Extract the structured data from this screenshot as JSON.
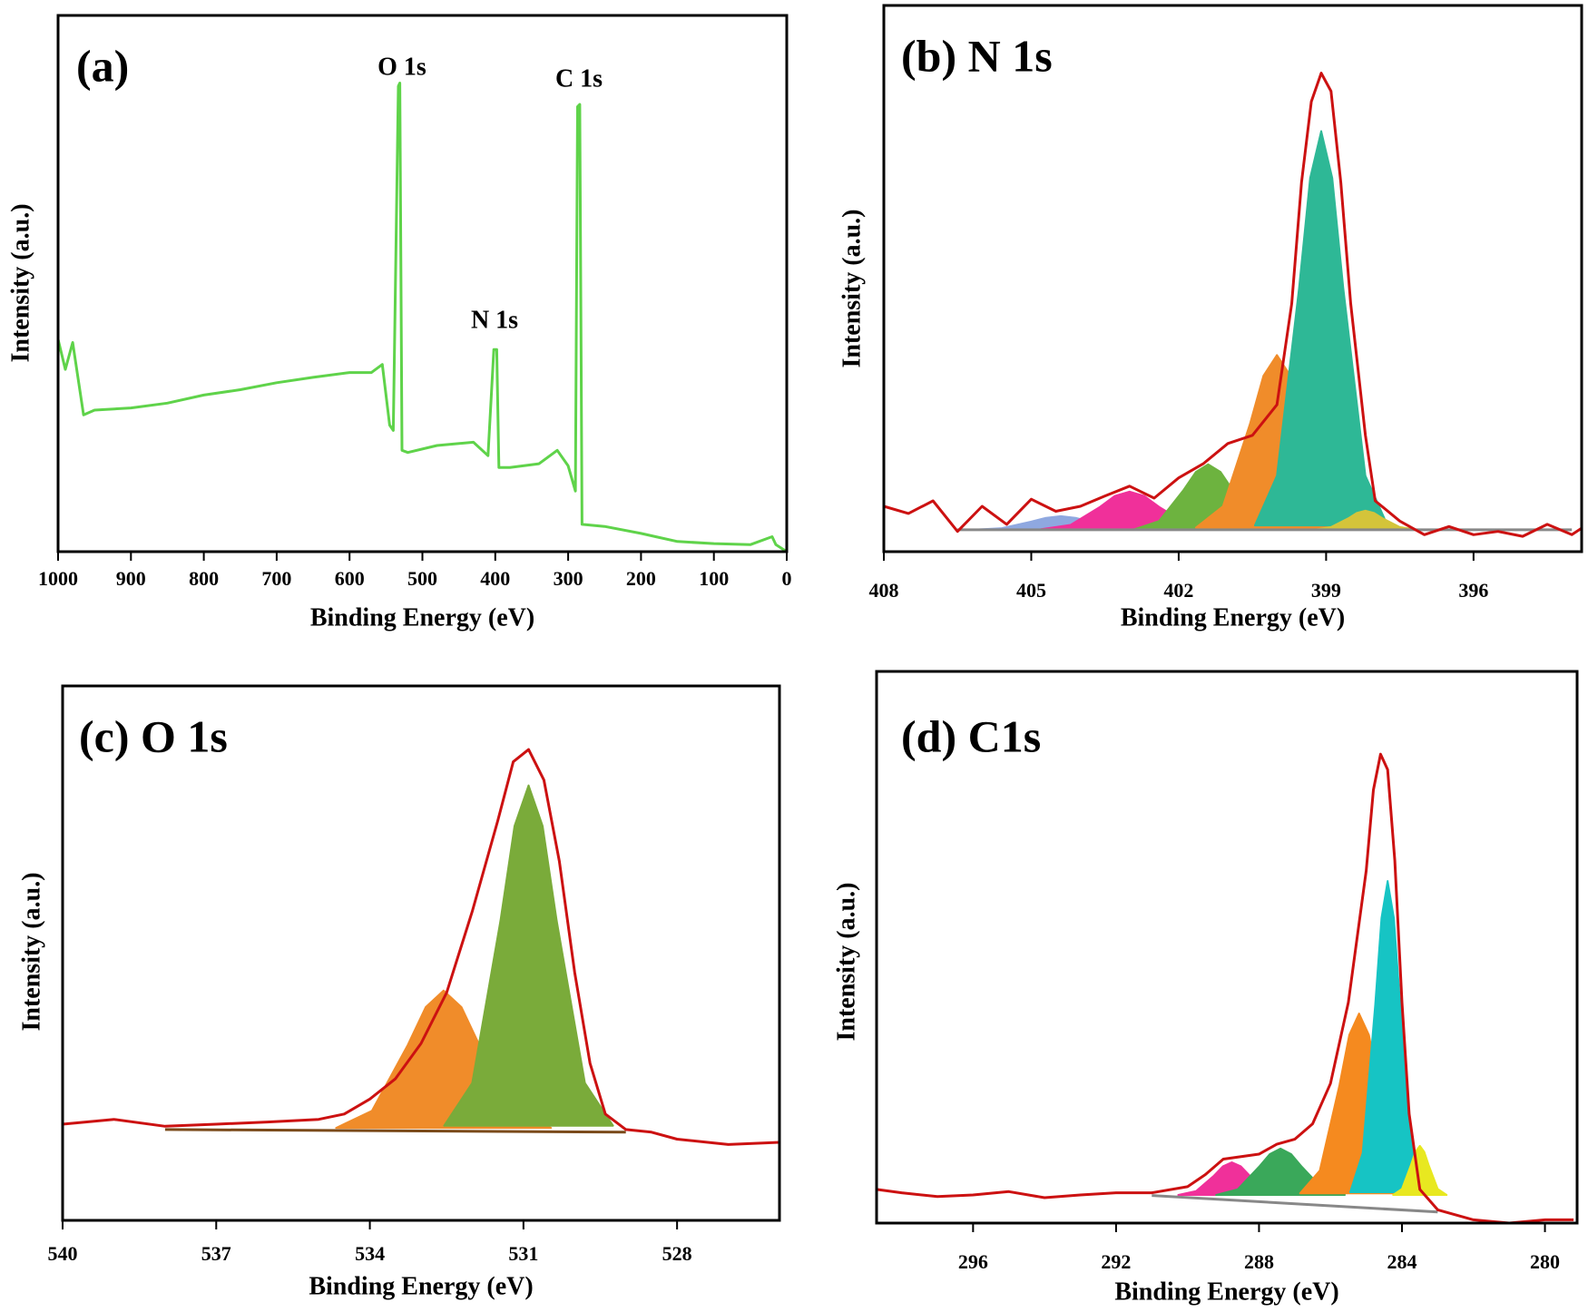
{
  "chart_data": [
    {
      "type": "line",
      "title": "(a)",
      "x_label": "Binding Energy (eV)",
      "y_label": "Intensity (a.u.)",
      "annotations": [
        "O 1s",
        "N 1s",
        "C 1s"
      ],
      "xlim": [
        1000,
        0
      ],
      "ylim": [
        0,
        100
      ],
      "xticks": [
        1000,
        900,
        800,
        700,
        600,
        500,
        400,
        300,
        200,
        100,
        0
      ],
      "series": [
        {
          "color": "#5fd34a",
          "fill": false,
          "x": [
            1000,
            990,
            980,
            965,
            950,
            900,
            850,
            800,
            750,
            700,
            650,
            600,
            570,
            555,
            545,
            540,
            533,
            531,
            528,
            520,
            480,
            430,
            410,
            402,
            398,
            395,
            380,
            340,
            315,
            300,
            290,
            287,
            284,
            281,
            250,
            200,
            180,
            150,
            100,
            50,
            20,
            15,
            0
          ],
          "values": [
            39.6,
            34,
            39,
            25.5,
            26.4,
            26.8,
            27.7,
            29.2,
            30.2,
            31.5,
            32.5,
            33.4,
            33.4,
            34.9,
            23.6,
            22.6,
            86.8,
            87.4,
            18.9,
            18.5,
            19.8,
            20.4,
            17.9,
            37.7,
            37.7,
            15.7,
            15.7,
            16.4,
            18.9,
            16,
            11.3,
            83,
            83.4,
            5.1,
            4.7,
            3.4,
            2.8,
            1.9,
            1.5,
            1.3,
            2.8,
            1.3,
            0
          ]
        }
      ]
    },
    {
      "type": "line",
      "title": "(b) N 1s",
      "x_label": "Binding Energy (eV)",
      "y_label": "Intensity (a.u.)",
      "xlim": [
        408,
        393.8
      ],
      "ylim": [
        0,
        100
      ],
      "xticks": [
        408,
        405,
        402,
        399,
        396
      ],
      "series": [
        {
          "color": "#8fa8e0",
          "fill": true,
          "x": [
            406.2,
            405.6,
            405,
            404.7,
            404.4,
            404.1,
            403.8,
            403.2,
            402.6
          ],
          "values": [
            4,
            4.3,
            5.5,
            6.2,
            6.5,
            6.2,
            5.5,
            4.3,
            4
          ]
        },
        {
          "color": "#f0309a",
          "fill": true,
          "x": [
            404.8,
            404.2,
            403.6,
            403.3,
            403,
            402.7,
            402.4,
            401.8,
            401.2
          ],
          "values": [
            4.1,
            4.9,
            8.2,
            10.2,
            11,
            10.2,
            8.2,
            4.9,
            4.1
          ]
        },
        {
          "color": "#6db33f",
          "fill": true,
          "x": [
            402.9,
            402.4,
            401.9,
            401.65,
            401.4,
            401.15,
            400.9,
            400.4,
            399.9
          ],
          "values": [
            4.1,
            5.6,
            11.3,
            14.6,
            16,
            14.6,
            11.3,
            5.6,
            4.1
          ]
        },
        {
          "color": "#f08c2a",
          "fill": true,
          "x": [
            401.65,
            401.1,
            400.55,
            400.275,
            400,
            399.725,
            399.45,
            398.9,
            398.35
          ],
          "values": [
            4.4,
            8.3,
            23.4,
            32.2,
            36,
            32.2,
            23.4,
            8.3,
            4.4
          ]
        },
        {
          "color": "#2eb896",
          "fill": true,
          "x": [
            400.45,
            400,
            399.55,
            399.325,
            399.1,
            398.875,
            398.65,
            398.2,
            397.75
          ],
          "values": [
            4.8,
            13.9,
            48.3,
            68.4,
            77,
            68.4,
            48.3,
            13.9,
            4.8
          ]
        },
        {
          "color": "#d4c43a",
          "fill": true,
          "x": [
            399.25,
            398.9,
            398.55,
            398.375,
            398.2,
            398.025,
            397.85,
            397.5,
            397.15
          ],
          "values": [
            4,
            4.5,
            6.1,
            7.1,
            7.5,
            7.1,
            6.1,
            4.5,
            4
          ]
        },
        {
          "color": "#888888",
          "fill": false,
          "x": [
            406.5,
            394
          ],
          "values": [
            4,
            4
          ]
        },
        {
          "color": "#cc1111",
          "fill": false,
          "x": [
            408,
            407.5,
            407,
            406.5,
            406,
            405.5,
            405,
            404.5,
            404,
            403.5,
            403,
            402.5,
            402,
            401.5,
            401,
            400.5,
            400,
            399.7,
            399.5,
            399.3,
            399.1,
            398.9,
            398.7,
            398.5,
            398.2,
            398,
            397.5,
            397,
            396.5,
            396,
            395.5,
            395,
            394.5,
            394,
            393.8
          ],
          "values": [
            8.3,
            7,
            9.3,
            3.7,
            8.3,
            5,
            9.6,
            7.4,
            8.3,
            10.2,
            12,
            9.8,
            13.5,
            16.1,
            19.8,
            21.3,
            26.9,
            45.4,
            67.6,
            82.4,
            87.6,
            84.3,
            67.6,
            45.4,
            21.3,
            9.3,
            5.6,
            3.1,
            4.6,
            3.1,
            3.7,
            2.8,
            5,
            3.1,
            4.3
          ]
        }
      ]
    },
    {
      "type": "line",
      "title": "(c) O 1s",
      "x_label": "Binding Energy (eV)",
      "y_label": "Intensity (a.u.)",
      "xlim": [
        540,
        526
      ],
      "ylim": [
        0,
        100
      ],
      "xticks": [
        540,
        537,
        534,
        531,
        528
      ],
      "series": [
        {
          "color": "#f08c2a",
          "fill": true,
          "x": [
            534.66,
            533.96,
            533.26,
            532.91,
            532.56,
            532.21,
            531.86,
            531.16,
            530.46
          ],
          "values": [
            17.3,
            20.5,
            32.8,
            39.9,
            43,
            39.9,
            32.8,
            20.5,
            17.3
          ]
        },
        {
          "color": "#7aab3a",
          "fill": true,
          "x": [
            532.55,
            532,
            531.45,
            531.175,
            530.9,
            530.625,
            530.35,
            529.8,
            529.25
          ],
          "values": [
            17.7,
            25.7,
            56.1,
            73.8,
            81.4,
            73.8,
            56.1,
            25.7,
            17.7
          ]
        },
        {
          "color": "#7a4a1a",
          "fill": false,
          "x": [
            538,
            529
          ],
          "values": [
            17,
            16.5
          ]
        },
        {
          "color": "#cc1111",
          "fill": false,
          "x": [
            540,
            539,
            538,
            537,
            536,
            535,
            534.5,
            534,
            533.5,
            533,
            532.5,
            532,
            531.5,
            531.2,
            530.9,
            530.6,
            530.3,
            530,
            529.7,
            529.4,
            529,
            528.5,
            528,
            527,
            526
          ],
          "values": [
            18,
            18.9,
            17.6,
            18,
            18.4,
            18.9,
            19.9,
            22.7,
            26.5,
            33.1,
            42.6,
            57.8,
            74.8,
            85.8,
            88.1,
            82.4,
            67.2,
            46.4,
            29.4,
            19.9,
            17,
            16.5,
            15.2,
            14.2,
            14.6
          ]
        }
      ]
    },
    {
      "type": "line",
      "title": "(d) C1s",
      "x_label": "Binding Energy (eV)",
      "y_label": "Intensity (a.u.)",
      "xlim": [
        298.7,
        279.1
      ],
      "ylim": [
        0,
        100
      ],
      "xticks": [
        296,
        292,
        288,
        284,
        280
      ],
      "series": [
        {
          "color": "#f0309a",
          "fill": true,
          "x": [
            290.26,
            289.76,
            289.26,
            289.01,
            288.76,
            288.51,
            288.26,
            287.76,
            287.26
          ],
          "values": [
            5.1,
            5.8,
            8.6,
            10.3,
            11,
            10.3,
            8.6,
            5.8,
            5.1
          ]
        },
        {
          "color": "#3aa85a",
          "fill": true,
          "x": [
            289.2,
            288.6,
            288,
            287.7,
            287.4,
            287.1,
            286.8,
            286.2,
            285.6
          ],
          "values": [
            5.1,
            6.1,
            10.2,
            12.5,
            13.5,
            12.5,
            10.2,
            6.1,
            5.1
          ]
        },
        {
          "color": "#f58a1f",
          "fill": true,
          "x": [
            286.85,
            286.3,
            285.75,
            285.475,
            285.2,
            284.925,
            284.65,
            284.1,
            283.55
          ],
          "values": [
            5.4,
            9.5,
            25,
            34.1,
            38,
            34.1,
            25,
            9.5,
            5.4
          ]
        },
        {
          "color": "#16c4c4",
          "fill": true,
          "x": [
            285.45,
            285.1,
            284.75,
            284.575,
            284.4,
            284.225,
            284.05,
            283.7,
            283.35
          ],
          "values": [
            5.6,
            12.7,
            39.6,
            55.3,
            62,
            55.3,
            39.6,
            12.7,
            5.6
          ]
        },
        {
          "color": "#e8e820",
          "fill": true,
          "x": [
            284.25,
            284,
            283.75,
            283.625,
            283.5,
            283.375,
            283.25,
            283,
            282.75
          ],
          "values": [
            5.1,
            6.2,
            10.5,
            12.9,
            14,
            12.9,
            10.5,
            6.2,
            5.1
          ]
        },
        {
          "color": "#888888",
          "fill": false,
          "x": [
            291,
            283
          ],
          "values": [
            5,
            2
          ]
        },
        {
          "color": "#cc1111",
          "fill": false,
          "x": [
            298.7,
            298,
            297,
            296,
            295,
            294,
            293,
            292,
            291,
            290,
            289.5,
            289,
            288,
            287.5,
            287,
            286.5,
            286,
            285.5,
            285,
            284.8,
            284.6,
            284.4,
            284.2,
            284,
            283.8,
            283.5,
            283,
            282.5,
            282,
            281,
            280,
            279.2
          ],
          "values": [
            6.1,
            5.5,
            4.8,
            5.1,
            5.7,
            4.6,
            5.1,
            5.5,
            5.5,
            6.6,
            8.8,
            11.6,
            12.5,
            14.3,
            15.2,
            18,
            25.3,
            40,
            63.9,
            78.5,
            85,
            82.2,
            65.7,
            40,
            19.8,
            6.1,
            2.4,
            1.5,
            0.6,
            0,
            0.6,
            0.6
          ]
        }
      ]
    }
  ]
}
